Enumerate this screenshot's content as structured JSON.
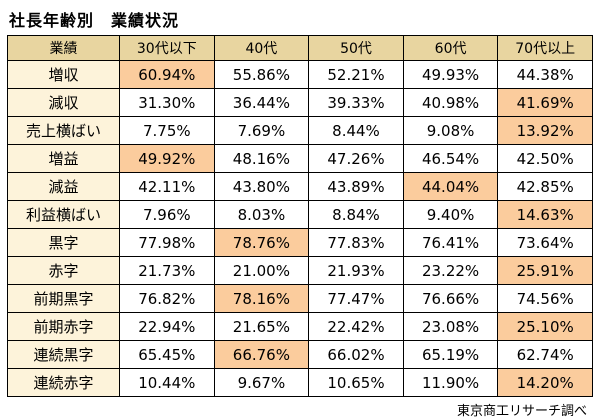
{
  "title": "社長年齢別　業績状況",
  "footer": "東京商工リサーチ調べ",
  "colors": {
    "header_bg": "#e8d5a0",
    "label_bg": "#fdf3da",
    "highlight_bg": "#fbcc9d",
    "border": "#000000"
  },
  "chart_data": {
    "type": "table",
    "title": "社長年齢別 業績状況",
    "columns": [
      "業績",
      "30代以下",
      "40代",
      "50代",
      "60代",
      "70代以上"
    ],
    "rows": [
      {
        "label": "増収",
        "values": [
          "60.94%",
          "55.86%",
          "52.21%",
          "49.93%",
          "44.38%"
        ],
        "highlight": 0
      },
      {
        "label": "減収",
        "values": [
          "31.30%",
          "36.44%",
          "39.33%",
          "40.98%",
          "41.69%"
        ],
        "highlight": 4
      },
      {
        "label": "売上横ばい",
        "values": [
          "7.75%",
          "7.69%",
          "8.44%",
          "9.08%",
          "13.92%"
        ],
        "highlight": 4
      },
      {
        "label": "増益",
        "values": [
          "49.92%",
          "48.16%",
          "47.26%",
          "46.54%",
          "42.50%"
        ],
        "highlight": 0
      },
      {
        "label": "減益",
        "values": [
          "42.11%",
          "43.80%",
          "43.89%",
          "44.04%",
          "42.85%"
        ],
        "highlight": 3
      },
      {
        "label": "利益横ばい",
        "values": [
          "7.96%",
          "8.03%",
          "8.84%",
          "9.40%",
          "14.63%"
        ],
        "highlight": 4
      },
      {
        "label": "黒字",
        "values": [
          "77.98%",
          "78.76%",
          "77.83%",
          "76.41%",
          "73.64%"
        ],
        "highlight": 1
      },
      {
        "label": "赤字",
        "values": [
          "21.73%",
          "21.00%",
          "21.93%",
          "23.22%",
          "25.91%"
        ],
        "highlight": 4
      },
      {
        "label": "前期黒字",
        "values": [
          "76.82%",
          "78.16%",
          "77.47%",
          "76.66%",
          "74.56%"
        ],
        "highlight": 1
      },
      {
        "label": "前期赤字",
        "values": [
          "22.94%",
          "21.65%",
          "22.42%",
          "23.08%",
          "25.10%"
        ],
        "highlight": 4
      },
      {
        "label": "連続黒字",
        "values": [
          "65.45%",
          "66.76%",
          "66.02%",
          "65.19%",
          "62.74%"
        ],
        "highlight": 1
      },
      {
        "label": "連続赤字",
        "values": [
          "10.44%",
          "9.67%",
          "10.65%",
          "11.90%",
          "14.20%"
        ],
        "highlight": 4
      }
    ]
  }
}
